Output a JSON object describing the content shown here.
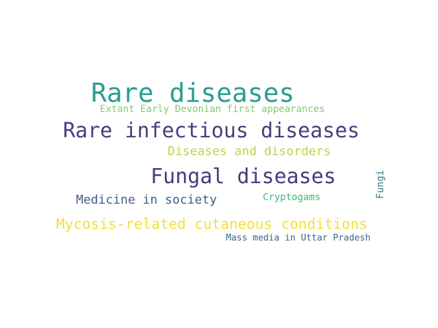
{
  "word_cloud": {
    "words": [
      {
        "text": "Rare diseases",
        "color": "#2a9d8f"
      },
      {
        "text": "Extant Early Devonian first appearances",
        "color": "#7fcd6a"
      },
      {
        "text": "Rare infectious diseases",
        "color": "#453f7f"
      },
      {
        "text": "Diseases and disorders",
        "color": "#b5d84a"
      },
      {
        "text": "Fungal diseases",
        "color": "#463a80"
      },
      {
        "text": "Medicine in society",
        "color": "#3f5f8a"
      },
      {
        "text": "Cryptogams",
        "color": "#3dba74"
      },
      {
        "text": "Mycosis-related cutaneous conditions",
        "color": "#f3e03b"
      },
      {
        "text": "Mass media in Uttar Pradesh",
        "color": "#35688c"
      },
      {
        "text": "Fungi",
        "color": "#2d7c8e"
      }
    ]
  }
}
